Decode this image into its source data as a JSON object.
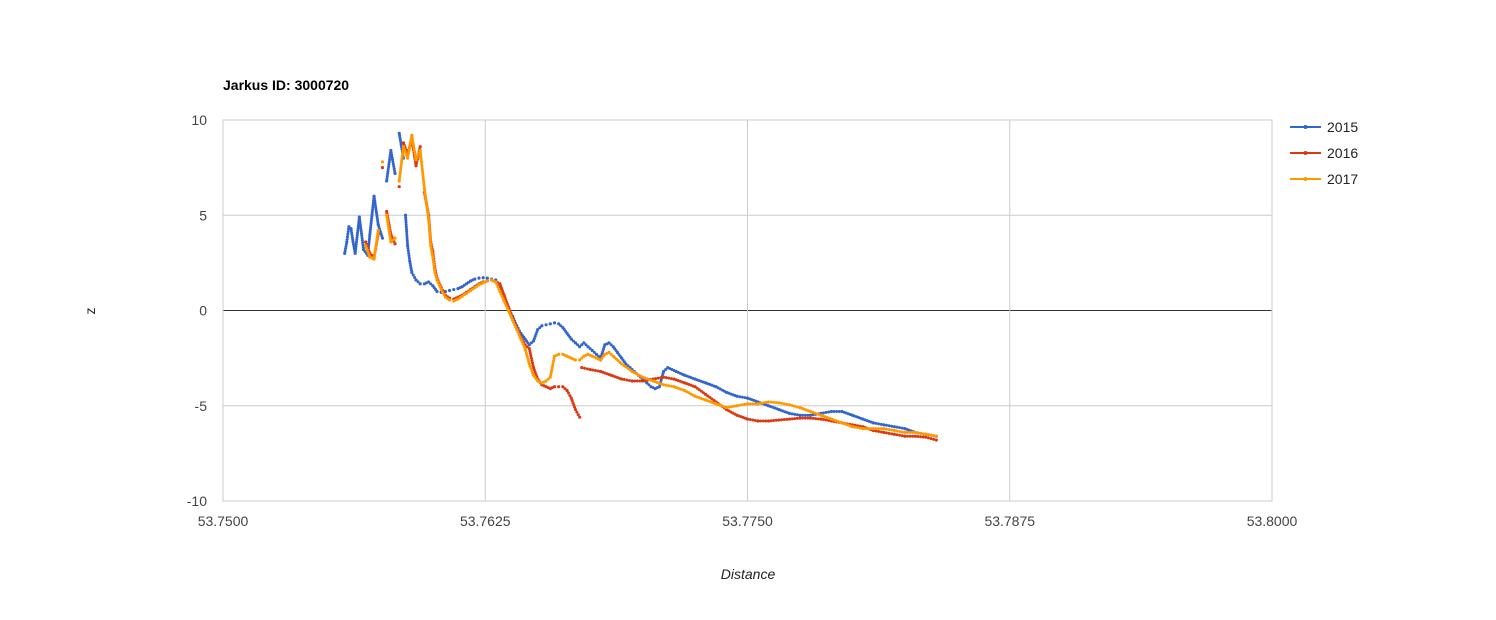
{
  "chart_data": {
    "type": "scatter",
    "title": "Jarkus ID: 3000720",
    "xlabel": "Distance",
    "ylabel": "z",
    "xlim": [
      53.75,
      53.8
    ],
    "ylim": [
      -10,
      10
    ],
    "x_ticks": [
      "53.7500",
      "53.7625",
      "53.7750",
      "53.7875",
      "53.8000"
    ],
    "x_tick_values": [
      53.75,
      53.7625,
      53.775,
      53.7875,
      53.8
    ],
    "y_ticks": [
      "10",
      "5",
      "0",
      "-5",
      "-10"
    ],
    "y_tick_values": [
      10,
      5,
      0,
      -5,
      -10
    ],
    "grid": true,
    "legend_position": "right",
    "series": [
      {
        "name": "2015",
        "color": "#3366cc",
        "points": [
          [
            53.7558,
            3.0
          ],
          [
            53.7559,
            3.6
          ],
          [
            53.756,
            4.4
          ],
          [
            53.7561,
            4.3
          ],
          [
            53.7562,
            3.6
          ],
          [
            53.7563,
            3.0
          ],
          [
            53.7565,
            4.9
          ],
          [
            53.7567,
            3.2
          ],
          [
            53.7569,
            2.9
          ],
          [
            53.757,
            4.0
          ],
          [
            53.7572,
            6.0
          ],
          [
            53.7574,
            4.5
          ],
          [
            53.7576,
            3.8
          ],
          [
            53.7578,
            6.8
          ],
          [
            53.758,
            8.4
          ],
          [
            53.7582,
            7.2
          ],
          [
            53.7584,
            9.3
          ],
          [
            53.7586,
            8.0
          ],
          [
            53.7587,
            5.0
          ],
          [
            53.7588,
            3.4
          ],
          [
            53.7589,
            2.6
          ],
          [
            53.759,
            2.0
          ],
          [
            53.7592,
            1.6
          ],
          [
            53.7594,
            1.4
          ],
          [
            53.7596,
            1.4
          ],
          [
            53.7598,
            1.5
          ],
          [
            53.76,
            1.3
          ],
          [
            53.7602,
            1.0
          ],
          [
            53.7604,
            0.95
          ],
          [
            53.7606,
            1.0
          ],
          [
            53.7608,
            1.05
          ],
          [
            53.761,
            1.1
          ],
          [
            53.7612,
            1.15
          ],
          [
            53.7614,
            1.25
          ],
          [
            53.7616,
            1.4
          ],
          [
            53.7618,
            1.55
          ],
          [
            53.762,
            1.65
          ],
          [
            53.7622,
            1.7
          ],
          [
            53.7624,
            1.72
          ],
          [
            53.7626,
            1.7
          ],
          [
            53.7628,
            1.65
          ],
          [
            53.763,
            1.6
          ],
          [
            53.7632,
            1.2
          ],
          [
            53.7634,
            0.5
          ],
          [
            53.7636,
            0.1
          ],
          [
            53.7638,
            -0.3
          ],
          [
            53.764,
            -0.8
          ],
          [
            53.7642,
            -1.2
          ],
          [
            53.7644,
            -1.5
          ],
          [
            53.7646,
            -1.8
          ],
          [
            53.7648,
            -1.6
          ],
          [
            53.765,
            -1.0
          ],
          [
            53.7652,
            -0.8
          ],
          [
            53.7654,
            -0.75
          ],
          [
            53.7656,
            -0.7
          ],
          [
            53.7658,
            -0.65
          ],
          [
            53.766,
            -0.7
          ],
          [
            53.7662,
            -0.9
          ],
          [
            53.7664,
            -1.2
          ],
          [
            53.7666,
            -1.5
          ],
          [
            53.7668,
            -1.7
          ],
          [
            53.767,
            -1.9
          ],
          [
            53.7672,
            -1.7
          ],
          [
            53.7674,
            -1.9
          ],
          [
            53.7676,
            -2.1
          ],
          [
            53.7678,
            -2.3
          ],
          [
            53.768,
            -2.5
          ],
          [
            53.7682,
            -1.8
          ],
          [
            53.7684,
            -1.7
          ],
          [
            53.7686,
            -1.9
          ],
          [
            53.7688,
            -2.2
          ],
          [
            53.769,
            -2.5
          ],
          [
            53.7692,
            -2.8
          ],
          [
            53.7694,
            -3.0
          ],
          [
            53.7696,
            -3.2
          ],
          [
            53.7698,
            -3.4
          ],
          [
            53.77,
            -3.6
          ],
          [
            53.7702,
            -3.8
          ],
          [
            53.7704,
            -4.0
          ],
          [
            53.7706,
            -4.1
          ],
          [
            53.7708,
            -4.0
          ],
          [
            53.771,
            -3.2
          ],
          [
            53.7712,
            -3.0
          ],
          [
            53.7716,
            -3.2
          ],
          [
            53.772,
            -3.4
          ],
          [
            53.7725,
            -3.6
          ],
          [
            53.773,
            -3.8
          ],
          [
            53.7735,
            -4.0
          ],
          [
            53.774,
            -4.3
          ],
          [
            53.7745,
            -4.5
          ],
          [
            53.775,
            -4.6
          ],
          [
            53.7755,
            -4.8
          ],
          [
            53.776,
            -5.0
          ],
          [
            53.7765,
            -5.2
          ],
          [
            53.777,
            -5.4
          ],
          [
            53.7775,
            -5.5
          ],
          [
            53.778,
            -5.5
          ],
          [
            53.7785,
            -5.4
          ],
          [
            53.779,
            -5.3
          ],
          [
            53.7795,
            -5.3
          ],
          [
            53.78,
            -5.5
          ],
          [
            53.7805,
            -5.7
          ],
          [
            53.781,
            -5.9
          ],
          [
            53.7815,
            -6.0
          ],
          [
            53.782,
            -6.1
          ],
          [
            53.7825,
            -6.2
          ],
          [
            53.783,
            -6.4
          ],
          [
            53.7835,
            -6.5
          ],
          [
            53.784,
            -6.6
          ]
        ]
      },
      {
        "name": "2016",
        "color": "#dc3912",
        "points": [
          [
            53.7568,
            3.6
          ],
          [
            53.757,
            3.0
          ],
          [
            53.7572,
            2.8
          ],
          [
            53.7574,
            4.0
          ],
          [
            53.7576,
            7.5
          ],
          [
            53.7578,
            5.2
          ],
          [
            53.758,
            4.0
          ],
          [
            53.7582,
            3.5
          ],
          [
            53.7584,
            6.5
          ],
          [
            53.7586,
            8.8
          ],
          [
            53.7588,
            8.2
          ],
          [
            53.759,
            9.0
          ],
          [
            53.7592,
            7.6
          ],
          [
            53.7594,
            8.6
          ],
          [
            53.7596,
            6.2
          ],
          [
            53.7598,
            5.0
          ],
          [
            53.7599,
            3.6
          ],
          [
            53.76,
            3.1
          ],
          [
            53.7601,
            2.2
          ],
          [
            53.7602,
            1.7
          ],
          [
            53.7604,
            1.2
          ],
          [
            53.7606,
            0.8
          ],
          [
            53.7608,
            0.65
          ],
          [
            53.761,
            0.6
          ],
          [
            53.7612,
            0.7
          ],
          [
            53.7614,
            0.8
          ],
          [
            53.7616,
            0.95
          ],
          [
            53.7618,
            1.1
          ],
          [
            53.762,
            1.25
          ],
          [
            53.7622,
            1.4
          ],
          [
            53.7624,
            1.5
          ],
          [
            53.7626,
            1.55
          ],
          [
            53.7628,
            1.6
          ],
          [
            53.763,
            1.5
          ],
          [
            53.7632,
            1.4
          ],
          [
            53.7634,
            0.8
          ],
          [
            53.7636,
            0.2
          ],
          [
            53.7638,
            -0.4
          ],
          [
            53.764,
            -0.9
          ],
          [
            53.7642,
            -1.4
          ],
          [
            53.7644,
            -1.8
          ],
          [
            53.7646,
            -2.0
          ],
          [
            53.7648,
            -3.0
          ],
          [
            53.765,
            -3.6
          ],
          [
            53.7652,
            -3.9
          ],
          [
            53.7654,
            -4.0
          ],
          [
            53.7656,
            -4.1
          ],
          [
            53.7658,
            -4.0
          ],
          [
            53.766,
            -4.0
          ],
          [
            53.7662,
            -4.0
          ],
          [
            53.7664,
            -4.2
          ],
          [
            53.7666,
            -4.6
          ],
          [
            53.7668,
            -5.2
          ],
          [
            53.767,
            -5.6
          ],
          [
            53.7671,
            -3.0
          ],
          [
            53.7675,
            -3.1
          ],
          [
            53.768,
            -3.2
          ],
          [
            53.7685,
            -3.4
          ],
          [
            53.769,
            -3.6
          ],
          [
            53.7695,
            -3.7
          ],
          [
            53.77,
            -3.7
          ],
          [
            53.7705,
            -3.6
          ],
          [
            53.771,
            -3.5
          ],
          [
            53.7715,
            -3.6
          ],
          [
            53.772,
            -3.8
          ],
          [
            53.7725,
            -4.0
          ],
          [
            53.773,
            -4.4
          ],
          [
            53.7735,
            -4.8
          ],
          [
            53.774,
            -5.2
          ],
          [
            53.7745,
            -5.5
          ],
          [
            53.775,
            -5.7
          ],
          [
            53.7755,
            -5.8
          ],
          [
            53.776,
            -5.8
          ],
          [
            53.7765,
            -5.75
          ],
          [
            53.777,
            -5.7
          ],
          [
            53.7775,
            -5.65
          ],
          [
            53.778,
            -5.65
          ],
          [
            53.7785,
            -5.7
          ],
          [
            53.779,
            -5.8
          ],
          [
            53.7795,
            -5.9
          ],
          [
            53.78,
            -6.0
          ],
          [
            53.7805,
            -6.1
          ],
          [
            53.781,
            -6.3
          ],
          [
            53.7815,
            -6.4
          ],
          [
            53.782,
            -6.5
          ],
          [
            53.7825,
            -6.6
          ],
          [
            53.783,
            -6.6
          ],
          [
            53.7835,
            -6.65
          ],
          [
            53.784,
            -6.8
          ]
        ]
      },
      {
        "name": "2017",
        "color": "#ff9900",
        "points": [
          [
            53.7568,
            3.4
          ],
          [
            53.757,
            2.8
          ],
          [
            53.7572,
            2.7
          ],
          [
            53.7574,
            4.2
          ],
          [
            53.7576,
            7.8
          ],
          [
            53.7578,
            5.0
          ],
          [
            53.758,
            3.6
          ],
          [
            53.7582,
            3.8
          ],
          [
            53.7584,
            6.8
          ],
          [
            53.7586,
            8.6
          ],
          [
            53.7588,
            8.0
          ],
          [
            53.759,
            9.2
          ],
          [
            53.7592,
            7.9
          ],
          [
            53.7594,
            8.4
          ],
          [
            53.7596,
            6.4
          ],
          [
            53.7598,
            4.8
          ],
          [
            53.7599,
            3.4
          ],
          [
            53.76,
            2.8
          ],
          [
            53.7601,
            2.0
          ],
          [
            53.7602,
            1.6
          ],
          [
            53.7604,
            1.1
          ],
          [
            53.7606,
            0.7
          ],
          [
            53.7608,
            0.55
          ],
          [
            53.761,
            0.5
          ],
          [
            53.7612,
            0.6
          ],
          [
            53.7614,
            0.75
          ],
          [
            53.7616,
            0.9
          ],
          [
            53.7618,
            1.05
          ],
          [
            53.762,
            1.2
          ],
          [
            53.7622,
            1.35
          ],
          [
            53.7624,
            1.45
          ],
          [
            53.7626,
            1.55
          ],
          [
            53.7628,
            1.6
          ],
          [
            53.763,
            1.5
          ],
          [
            53.7632,
            1.0
          ],
          [
            53.7634,
            0.5
          ],
          [
            53.7636,
            0.0
          ],
          [
            53.7638,
            -0.5
          ],
          [
            53.764,
            -1.0
          ],
          [
            53.7642,
            -1.5
          ],
          [
            53.7644,
            -2.0
          ],
          [
            53.7646,
            -2.8
          ],
          [
            53.7648,
            -3.4
          ],
          [
            53.765,
            -3.7
          ],
          [
            53.7652,
            -3.8
          ],
          [
            53.7654,
            -3.7
          ],
          [
            53.7656,
            -3.5
          ],
          [
            53.7658,
            -2.4
          ],
          [
            53.766,
            -2.3
          ],
          [
            53.7662,
            -2.3
          ],
          [
            53.7664,
            -2.4
          ],
          [
            53.7666,
            -2.5
          ],
          [
            53.7668,
            -2.6
          ],
          [
            53.767,
            -2.6
          ],
          [
            53.7672,
            -2.4
          ],
          [
            53.7674,
            -2.3
          ],
          [
            53.7676,
            -2.4
          ],
          [
            53.7678,
            -2.5
          ],
          [
            53.768,
            -2.6
          ],
          [
            53.7682,
            -2.3
          ],
          [
            53.7684,
            -2.2
          ],
          [
            53.7686,
            -2.4
          ],
          [
            53.769,
            -2.8
          ],
          [
            53.7695,
            -3.2
          ],
          [
            53.77,
            -3.5
          ],
          [
            53.7705,
            -3.7
          ],
          [
            53.771,
            -3.9
          ],
          [
            53.7715,
            -4.0
          ],
          [
            53.772,
            -4.2
          ],
          [
            53.7725,
            -4.5
          ],
          [
            53.773,
            -4.7
          ],
          [
            53.7735,
            -4.9
          ],
          [
            53.774,
            -5.1
          ],
          [
            53.7745,
            -5.0
          ],
          [
            53.775,
            -4.9
          ],
          [
            53.7755,
            -4.9
          ],
          [
            53.776,
            -4.8
          ],
          [
            53.7765,
            -4.85
          ],
          [
            53.777,
            -4.95
          ],
          [
            53.7775,
            -5.1
          ],
          [
            53.778,
            -5.3
          ],
          [
            53.7785,
            -5.5
          ],
          [
            53.779,
            -5.7
          ],
          [
            53.7795,
            -5.9
          ],
          [
            53.78,
            -6.1
          ],
          [
            53.7805,
            -6.2
          ],
          [
            53.781,
            -6.2
          ],
          [
            53.7815,
            -6.2
          ],
          [
            53.782,
            -6.3
          ],
          [
            53.7825,
            -6.4
          ],
          [
            53.783,
            -6.4
          ],
          [
            53.7835,
            -6.5
          ],
          [
            53.784,
            -6.6
          ]
        ]
      }
    ]
  }
}
